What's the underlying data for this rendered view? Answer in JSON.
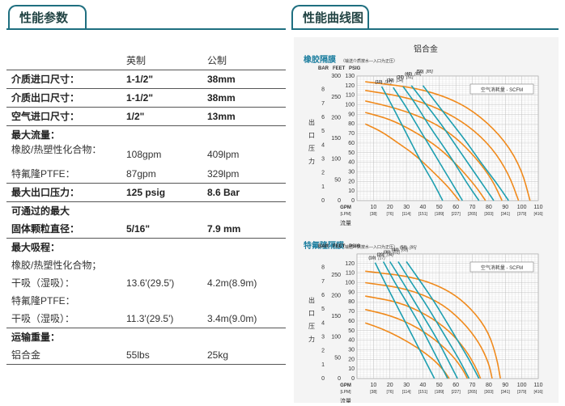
{
  "tabs": {
    "spec_title": "性能参数",
    "curve_title": "性能曲线图"
  },
  "spec": {
    "header": {
      "col1": "英制",
      "col2": "公制"
    },
    "rows": [
      {
        "label": "介质进口尺寸：",
        "v1": "1-1/2\"",
        "v2": "38mm",
        "bold": true,
        "sep": true
      },
      {
        "label": "介质出口尺寸：",
        "v1": "1-1/2\"",
        "v2": "38mm",
        "bold": true,
        "sep": true
      },
      {
        "label": "空气进口尺寸：",
        "v1": "1/2\"",
        "v2": "13mm",
        "bold": true,
        "sep": true
      },
      {
        "label": "最大流量：",
        "v1": "",
        "v2": "",
        "bold": true,
        "sep": false
      },
      {
        "label": "橡胶/热塑性化合物：",
        "v1": "108gpm",
        "v2": "409lpm",
        "bold": false,
        "sep": false,
        "two": true
      },
      {
        "label": "特氟隆PTFE：",
        "v1": "87gpm",
        "v2": "329lpm",
        "bold": false,
        "sep": true
      },
      {
        "label": "最大出口压力：",
        "v1": "125 psig",
        "v2": "8.6 Bar",
        "bold": true,
        "sep": true
      },
      {
        "label": "可通过的最大",
        "v1": "",
        "v2": "",
        "bold": true,
        "sep": false
      },
      {
        "label": "固体颗粒直径：",
        "v1": "5/16\"",
        "v2": "7.9 mm",
        "bold": true,
        "sep": true
      },
      {
        "label": "最大吸程：",
        "v1": "",
        "v2": "",
        "bold": true,
        "sep": false
      },
      {
        "label": "橡胶/热塑性化合物；",
        "v1": "",
        "v2": "",
        "bold": false,
        "sep": false
      },
      {
        "label": "干吸（湿吸）：",
        "v1": "13.6'(29.5')",
        "v2": "4.2m(8.9m)",
        "bold": false,
        "sep": false
      },
      {
        "label": "特氟隆PTFE：",
        "v1": "",
        "v2": "",
        "bold": false,
        "sep": false
      },
      {
        "label": "干吸（湿吸）：",
        "v1": "11.3'(29.5')",
        "v2": "3.4m(9.0m)",
        "bold": false,
        "sep": true
      },
      {
        "label": "运输重量：",
        "v1": "",
        "v2": "",
        "bold": true,
        "sep": false
      },
      {
        "label": "铝合金",
        "v1": "55lbs",
        "v2": "25kg",
        "bold": false,
        "sep": true
      }
    ]
  },
  "chart_data": [
    {
      "type": "line",
      "title": "铝合金",
      "subtitle": "橡胶隔膜",
      "note": "（输送介质按水—入口为正压）",
      "legend": "空气消耗量 - SCFM",
      "ylabel": "出口压力",
      "xlabel": "流量",
      "axis_headers": {
        "bar": "BAR",
        "feet": "FEET",
        "psig": "PSIG",
        "gpm": "GPM",
        "lpm": "[LPM]"
      },
      "y_psig_ticks": [
        0,
        10,
        20,
        30,
        40,
        50,
        60,
        70,
        80,
        90,
        100,
        110,
        120,
        130
      ],
      "y_feet_ticks": [
        0,
        50,
        100,
        150,
        200,
        250,
        300
      ],
      "y_bar_ticks": [
        0,
        1,
        2,
        3,
        4,
        5,
        6,
        7,
        8
      ],
      "x_gpm_ticks": [
        0,
        10,
        20,
        30,
        40,
        50,
        60,
        70,
        80,
        90,
        100,
        110
      ],
      "x_lpm_ticks": [
        "[38]",
        "[76]",
        "[114]",
        "[151]",
        "[189]",
        "[227]",
        "[265]",
        "[303]",
        "[341]",
        "[379]",
        "[416]"
      ],
      "xlim": [
        0,
        110
      ],
      "ylim": [
        0,
        130
      ],
      "scfm_labels": [
        "(10)",
        "[17]",
        "(20)",
        "[34]",
        "(30)",
        "[51]",
        "(40)",
        "[68]",
        "(50)",
        "[85]"
      ],
      "air_curves": [
        {
          "points": [
            [
              15,
              119
            ],
            [
              21,
              100
            ],
            [
              27,
              80
            ],
            [
              33,
              60
            ],
            [
              39,
              40
            ],
            [
              46,
              20
            ],
            [
              52,
              0
            ]
          ]
        },
        {
          "points": [
            [
              22,
              118
            ],
            [
              29,
              100
            ],
            [
              36,
              80
            ],
            [
              43,
              60
            ],
            [
              50,
              40
            ],
            [
              57,
              20
            ],
            [
              64,
              0
            ]
          ]
        },
        {
          "points": [
            [
              28,
              119
            ],
            [
              36,
              100
            ],
            [
              43,
              80
            ],
            [
              51,
              60
            ],
            [
              59,
              40
            ],
            [
              66,
              20
            ],
            [
              74,
              0
            ]
          ]
        },
        {
          "points": [
            [
              33,
              120
            ],
            [
              42,
              100
            ],
            [
              51,
              80
            ],
            [
              59,
              60
            ],
            [
              67,
              40
            ],
            [
              75,
              20
            ],
            [
              83,
              0
            ]
          ]
        },
        {
          "points": [
            [
              40,
              120
            ],
            [
              49,
              100
            ],
            [
              58,
              80
            ],
            [
              67,
              60
            ],
            [
              75,
              40
            ],
            [
              84,
              20
            ],
            [
              92,
              0
            ]
          ]
        }
      ],
      "npsh_curves": [
        {
          "points": [
            [
              5,
              80
            ],
            [
              15,
              72
            ],
            [
              25,
              60
            ],
            [
              35,
              48
            ],
            [
              45,
              32
            ],
            [
              55,
              15
            ],
            [
              62,
              0
            ]
          ]
        },
        {
          "points": [
            [
              5,
              92
            ],
            [
              20,
              85
            ],
            [
              35,
              72
            ],
            [
              50,
              55
            ],
            [
              62,
              35
            ],
            [
              72,
              15
            ],
            [
              78,
              0
            ]
          ]
        },
        {
          "points": [
            [
              5,
              104
            ],
            [
              25,
              96
            ],
            [
              45,
              83
            ],
            [
              60,
              66
            ],
            [
              72,
              45
            ],
            [
              82,
              22
            ],
            [
              88,
              0
            ]
          ]
        },
        {
          "points": [
            [
              5,
              115
            ],
            [
              30,
              108
            ],
            [
              50,
              96
            ],
            [
              68,
              78
            ],
            [
              82,
              55
            ],
            [
              92,
              28
            ],
            [
              98,
              0
            ]
          ]
        },
        {
          "points": [
            [
              5,
              124
            ],
            [
              35,
              118
            ],
            [
              58,
              106
            ],
            [
              75,
              88
            ],
            [
              90,
              62
            ],
            [
              100,
              32
            ],
            [
              105,
              0
            ]
          ]
        }
      ]
    },
    {
      "type": "line",
      "title": "",
      "subtitle": "特氟隆隔膜",
      "note": "（输送介质按水—入口为正压）",
      "legend": "空气消耗量 - SCFM",
      "ylabel": "出口压力",
      "xlabel": "流量",
      "axis_headers": {
        "bar": "BAR",
        "feet": "FEET",
        "psig": "PSIG",
        "gpm": "GPM",
        "lpm": "[LPM]"
      },
      "y_psig_ticks": [
        0,
        10,
        20,
        30,
        40,
        50,
        60,
        70,
        80,
        90,
        100,
        110,
        120
      ],
      "y_feet_ticks": [
        0,
        50,
        100,
        150,
        200,
        250
      ],
      "y_bar_ticks": [
        0,
        1,
        2,
        3,
        4,
        5,
        6,
        7,
        8
      ],
      "x_gpm_ticks": [
        0,
        10,
        20,
        30,
        40,
        50,
        60,
        70,
        80,
        90,
        100,
        110
      ],
      "x_lpm_ticks": [
        "[38]",
        "[76]",
        "[114]",
        "[151]",
        "[189]",
        "[227]",
        "[265]",
        "[303]",
        "[341]",
        "[379]",
        "[416]"
      ],
      "xlim": [
        0,
        110
      ],
      "ylim": [
        0,
        130
      ],
      "scfm_labels": [
        "(10)",
        "[17]",
        "(20)",
        "[34]",
        "(30)",
        "[51]",
        "(40)",
        "[68]",
        "(50)",
        "[85]"
      ],
      "air_curves": [
        {
          "points": [
            [
              11,
              121
            ],
            [
              17,
              100
            ],
            [
              23,
              80
            ],
            [
              29,
              60
            ],
            [
              35,
              40
            ],
            [
              41,
              20
            ],
            [
              47,
              0
            ]
          ]
        },
        {
          "points": [
            [
              16,
              122
            ],
            [
              23,
              100
            ],
            [
              30,
              80
            ],
            [
              37,
              60
            ],
            [
              43,
              40
            ],
            [
              49,
              20
            ],
            [
              55,
              0
            ]
          ]
        },
        {
          "points": [
            [
              20,
              122
            ],
            [
              28,
              100
            ],
            [
              35,
              80
            ],
            [
              42,
              60
            ],
            [
              49,
              40
            ],
            [
              55,
              20
            ],
            [
              61,
              0
            ]
          ]
        },
        {
          "points": [
            [
              25,
              122
            ],
            [
              33,
              100
            ],
            [
              41,
              80
            ],
            [
              48,
              60
            ],
            [
              55,
              40
            ],
            [
              62,
              20
            ],
            [
              68,
              0
            ]
          ]
        },
        {
          "points": [
            [
              30,
              122
            ],
            [
              39,
              100
            ],
            [
              47,
              80
            ],
            [
              54,
              60
            ],
            [
              61,
              40
            ],
            [
              68,
              20
            ],
            [
              74,
              0
            ]
          ]
        }
      ],
      "npsh_curves": [
        {
          "points": [
            [
              5,
              58
            ],
            [
              15,
              52
            ],
            [
              25,
              44
            ],
            [
              35,
              34
            ],
            [
              45,
              22
            ],
            [
              52,
              10
            ],
            [
              56,
              0
            ]
          ]
        },
        {
          "points": [
            [
              5,
              72
            ],
            [
              20,
              66
            ],
            [
              35,
              55
            ],
            [
              48,
              40
            ],
            [
              58,
              24
            ],
            [
              64,
              10
            ],
            [
              67,
              0
            ]
          ]
        },
        {
          "points": [
            [
              5,
              86
            ],
            [
              25,
              80
            ],
            [
              42,
              67
            ],
            [
              56,
              50
            ],
            [
              66,
              30
            ],
            [
              72,
              12
            ],
            [
              75,
              0
            ]
          ]
        },
        {
          "points": [
            [
              5,
              100
            ],
            [
              30,
              94
            ],
            [
              50,
              80
            ],
            [
              64,
              60
            ],
            [
              74,
              38
            ],
            [
              80,
              16
            ],
            [
              82,
              0
            ]
          ]
        },
        {
          "points": [
            [
              5,
              112
            ],
            [
              35,
              106
            ],
            [
              56,
              92
            ],
            [
              70,
              72
            ],
            [
              80,
              48
            ],
            [
              85,
              20
            ],
            [
              87,
              0
            ]
          ]
        }
      ]
    }
  ],
  "colors": {
    "tab_border": "#1f6f80",
    "air_curve": "#1e9fb0",
    "npsh_curve": "#f08a1c",
    "subtitle": "#1e7fa0",
    "grid": "#bdbdbd"
  }
}
